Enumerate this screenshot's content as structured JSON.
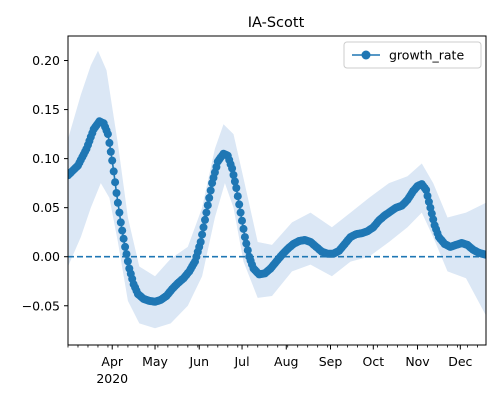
{
  "chart_data": {
    "type": "line",
    "title": "IA-Scott",
    "xlabel": "",
    "ylabel": "",
    "x_range": [
      "2020-03-01",
      "2020-12-19"
    ],
    "ylim": [
      -0.09,
      0.225
    ],
    "y_ticks": [
      -0.05,
      0.0,
      0.05,
      0.1,
      0.15,
      0.2
    ],
    "y_tick_labels": [
      "−0.05",
      "0.00",
      "0.05",
      "0.10",
      "0.15",
      "0.20"
    ],
    "x_ticks": [
      {
        "date": "2020-04-01",
        "label": "Apr",
        "sublabel": "2020"
      },
      {
        "date": "2020-05-01",
        "label": "May"
      },
      {
        "date": "2020-06-01",
        "label": "Jun"
      },
      {
        "date": "2020-07-01",
        "label": "Jul"
      },
      {
        "date": "2020-08-01",
        "label": "Aug"
      },
      {
        "date": "2020-09-01",
        "label": "Sep"
      },
      {
        "date": "2020-10-01",
        "label": "Oct"
      },
      {
        "date": "2020-11-01",
        "label": "Nov"
      },
      {
        "date": "2020-12-01",
        "label": "Dec"
      }
    ],
    "legend": {
      "placement": "top-right",
      "entries": [
        "growth_rate"
      ]
    },
    "grid": false,
    "reference_line": {
      "y": 0.0,
      "style": "dashed"
    },
    "colors": {
      "series": "#1f77b4",
      "band": "#dbe7f5"
    },
    "series": [
      {
        "name": "growth_rate",
        "points": [
          [
            "2020-03-01",
            0.083
          ],
          [
            "2020-03-08",
            0.093
          ],
          [
            "2020-03-14",
            0.11
          ],
          [
            "2020-03-19",
            0.13
          ],
          [
            "2020-03-23",
            0.138
          ],
          [
            "2020-03-26",
            0.136
          ],
          [
            "2020-03-29",
            0.125
          ],
          [
            "2020-04-01",
            0.098
          ],
          [
            "2020-04-04",
            0.065
          ],
          [
            "2020-04-07",
            0.035
          ],
          [
            "2020-04-10",
            0.01
          ],
          [
            "2020-04-13",
            -0.012
          ],
          [
            "2020-04-16",
            -0.028
          ],
          [
            "2020-04-19",
            -0.038
          ],
          [
            "2020-04-23",
            -0.043
          ],
          [
            "2020-04-27",
            -0.045
          ],
          [
            "2020-05-01",
            -0.046
          ],
          [
            "2020-05-05",
            -0.044
          ],
          [
            "2020-05-09",
            -0.04
          ],
          [
            "2020-05-13",
            -0.033
          ],
          [
            "2020-05-17",
            -0.027
          ],
          [
            "2020-05-21",
            -0.022
          ],
          [
            "2020-05-25",
            -0.015
          ],
          [
            "2020-05-29",
            -0.005
          ],
          [
            "2020-06-02",
            0.015
          ],
          [
            "2020-06-06",
            0.045
          ],
          [
            "2020-06-10",
            0.075
          ],
          [
            "2020-06-14",
            0.097
          ],
          [
            "2020-06-18",
            0.105
          ],
          [
            "2020-06-21",
            0.103
          ],
          [
            "2020-06-24",
            0.09
          ],
          [
            "2020-06-27",
            0.07
          ],
          [
            "2020-06-30",
            0.045
          ],
          [
            "2020-07-03",
            0.02
          ],
          [
            "2020-07-06",
            0.0
          ],
          [
            "2020-07-09",
            -0.012
          ],
          [
            "2020-07-13",
            -0.018
          ],
          [
            "2020-07-17",
            -0.017
          ],
          [
            "2020-07-21",
            -0.012
          ],
          [
            "2020-07-25",
            -0.005
          ],
          [
            "2020-07-29",
            0.002
          ],
          [
            "2020-08-02",
            0.008
          ],
          [
            "2020-08-06",
            0.013
          ],
          [
            "2020-08-10",
            0.016
          ],
          [
            "2020-08-14",
            0.017
          ],
          [
            "2020-08-18",
            0.015
          ],
          [
            "2020-08-22",
            0.01
          ],
          [
            "2020-08-26",
            0.005
          ],
          [
            "2020-08-30",
            0.003
          ],
          [
            "2020-09-03",
            0.003
          ],
          [
            "2020-09-07",
            0.006
          ],
          [
            "2020-09-11",
            0.013
          ],
          [
            "2020-09-15",
            0.02
          ],
          [
            "2020-09-19",
            0.023
          ],
          [
            "2020-09-23",
            0.024
          ],
          [
            "2020-09-27",
            0.026
          ],
          [
            "2020-10-01",
            0.03
          ],
          [
            "2020-10-05",
            0.037
          ],
          [
            "2020-10-09",
            0.042
          ],
          [
            "2020-10-13",
            0.046
          ],
          [
            "2020-10-17",
            0.05
          ],
          [
            "2020-10-21",
            0.052
          ],
          [
            "2020-10-25",
            0.058
          ],
          [
            "2020-10-29",
            0.067
          ],
          [
            "2020-11-01",
            0.072
          ],
          [
            "2020-11-04",
            0.074
          ],
          [
            "2020-11-07",
            0.068
          ],
          [
            "2020-11-10",
            0.05
          ],
          [
            "2020-11-13",
            0.032
          ],
          [
            "2020-11-16",
            0.02
          ],
          [
            "2020-11-20",
            0.013
          ],
          [
            "2020-11-24",
            0.01
          ],
          [
            "2020-11-28",
            0.012
          ],
          [
            "2020-12-02",
            0.014
          ],
          [
            "2020-12-06",
            0.012
          ],
          [
            "2020-12-10",
            0.007
          ],
          [
            "2020-12-14",
            0.004
          ],
          [
            "2020-12-19",
            0.002
          ]
        ],
        "band_lower": [
          [
            "2020-03-01",
            -0.01
          ],
          [
            "2020-03-10",
            0.02
          ],
          [
            "2020-03-17",
            0.05
          ],
          [
            "2020-03-24",
            0.075
          ],
          [
            "2020-03-30",
            0.06
          ],
          [
            "2020-04-05",
            0.015
          ],
          [
            "2020-04-12",
            -0.045
          ],
          [
            "2020-04-20",
            -0.068
          ],
          [
            "2020-05-01",
            -0.073
          ],
          [
            "2020-05-12",
            -0.068
          ],
          [
            "2020-05-24",
            -0.05
          ],
          [
            "2020-06-03",
            -0.02
          ],
          [
            "2020-06-12",
            0.04
          ],
          [
            "2020-06-19",
            0.075
          ],
          [
            "2020-06-25",
            0.05
          ],
          [
            "2020-07-02",
            -0.005
          ],
          [
            "2020-07-12",
            -0.042
          ],
          [
            "2020-07-22",
            -0.04
          ],
          [
            "2020-08-05",
            -0.015
          ],
          [
            "2020-08-18",
            -0.008
          ],
          [
            "2020-09-02",
            -0.02
          ],
          [
            "2020-09-15",
            -0.005
          ],
          [
            "2020-09-28",
            0.0
          ],
          [
            "2020-10-12",
            0.015
          ],
          [
            "2020-10-25",
            0.03
          ],
          [
            "2020-11-04",
            0.045
          ],
          [
            "2020-11-12",
            0.02
          ],
          [
            "2020-11-22",
            -0.015
          ],
          [
            "2020-12-05",
            -0.022
          ],
          [
            "2020-12-19",
            -0.06
          ]
        ],
        "band_upper": [
          [
            "2020-03-01",
            0.12
          ],
          [
            "2020-03-10",
            0.165
          ],
          [
            "2020-03-17",
            0.195
          ],
          [
            "2020-03-22",
            0.21
          ],
          [
            "2020-03-28",
            0.19
          ],
          [
            "2020-04-05",
            0.115
          ],
          [
            "2020-04-12",
            0.04
          ],
          [
            "2020-04-20",
            -0.01
          ],
          [
            "2020-05-01",
            -0.02
          ],
          [
            "2020-05-12",
            -0.002
          ],
          [
            "2020-05-24",
            0.01
          ],
          [
            "2020-06-03",
            0.05
          ],
          [
            "2020-06-12",
            0.11
          ],
          [
            "2020-06-18",
            0.135
          ],
          [
            "2020-06-25",
            0.125
          ],
          [
            "2020-07-02",
            0.08
          ],
          [
            "2020-07-12",
            0.015
          ],
          [
            "2020-07-22",
            0.012
          ],
          [
            "2020-08-05",
            0.035
          ],
          [
            "2020-08-18",
            0.045
          ],
          [
            "2020-09-02",
            0.03
          ],
          [
            "2020-09-15",
            0.045
          ],
          [
            "2020-09-28",
            0.06
          ],
          [
            "2020-10-12",
            0.075
          ],
          [
            "2020-10-25",
            0.082
          ],
          [
            "2020-11-04",
            0.095
          ],
          [
            "2020-11-12",
            0.075
          ],
          [
            "2020-11-22",
            0.04
          ],
          [
            "2020-12-05",
            0.045
          ],
          [
            "2020-12-19",
            0.055
          ]
        ]
      }
    ]
  }
}
